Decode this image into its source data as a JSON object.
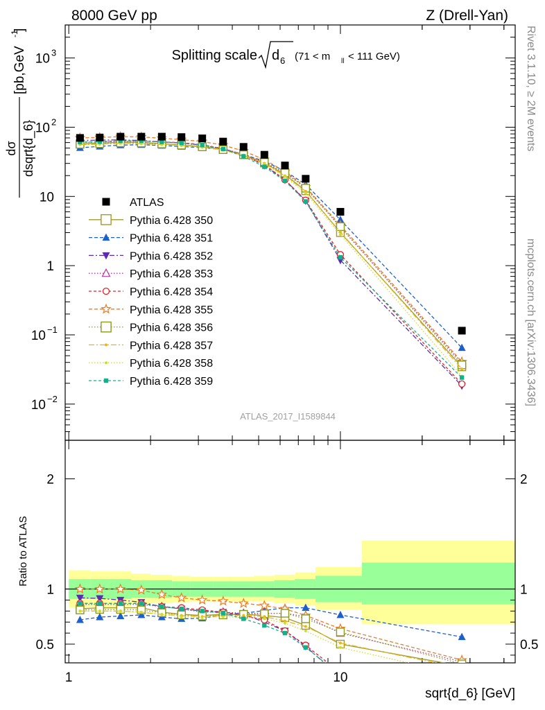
{
  "header": {
    "left": "8000 GeV pp",
    "right": "Z (Drell-Yan)"
  },
  "side_labels": {
    "version": "Rivet 3.1.10, ≥ 2M events",
    "source": "mcplots.cern.ch [arXiv:1306.3436]"
  },
  "chart_data": {
    "type": "line",
    "title": "Splitting scale √d_6 (71 < m_ll < 111 GeV)",
    "title_parts": {
      "main": "Splitting scale",
      "var": "d",
      "var_sub": "6",
      "cut": "(71 < m",
      "cut_sub": "ll",
      "cut_end": "< 111 GeV)"
    },
    "watermark": "ATLAS_2017_I1589844",
    "xlabel": "sqrt{d_6} [GeV]",
    "ylabel_top": "dσ / dsqrt{d_6} [pb,GeV⁻¹]",
    "ylabel_top_parts": {
      "num": "dσ",
      "den": "dsqrt{d_6}",
      "unit": "[pb,GeV",
      "exp": "-1",
      "close": "]"
    },
    "ylabel_bottom": "Ratio to ATLAS",
    "x_scale": "log",
    "xlim": [
      0.97,
      44
    ],
    "ylim_top": [
      0.003,
      3000
    ],
    "ylim_bottom": [
      0.33,
      2.35
    ],
    "y_scale_top": "log",
    "legend_position": "left-middle",
    "x_tick_labels": [
      {
        "value": 1,
        "label": "1"
      },
      {
        "value": 10,
        "label": "10"
      }
    ],
    "y_tick_labels_top": [
      {
        "value": 1000,
        "base": "10",
        "exp": "3"
      },
      {
        "value": 100,
        "base": "10",
        "exp": "2"
      },
      {
        "value": 10,
        "base": "10",
        "exp": ""
      },
      {
        "value": 1,
        "base": "1",
        "exp": ""
      },
      {
        "value": 0.1,
        "base": "10",
        "exp": "−1"
      },
      {
        "value": 0.01,
        "base": "10",
        "exp": "−2"
      }
    ],
    "y_tick_labels_bottom": [
      {
        "value": 2,
        "label": "2"
      },
      {
        "value": 1,
        "label": "1"
      },
      {
        "value": 0.5,
        "label": "0.5"
      }
    ],
    "bins": [
      [
        1.0,
        1.2
      ],
      [
        1.2,
        1.4
      ],
      [
        1.4,
        1.7
      ],
      [
        1.7,
        2.0
      ],
      [
        2.0,
        2.4
      ],
      [
        2.4,
        2.8
      ],
      [
        2.8,
        3.4
      ],
      [
        3.4,
        4.0
      ],
      [
        4.0,
        4.8
      ],
      [
        4.8,
        5.7
      ],
      [
        5.7,
        6.8
      ],
      [
        6.8,
        8.1
      ],
      [
        8.1,
        12.0
      ],
      [
        12.0,
        44.0
      ]
    ],
    "x": [
      1.1,
      1.3,
      1.55,
      1.85,
      2.2,
      2.6,
      3.1,
      3.7,
      4.4,
      5.25,
      6.25,
      7.45,
      10.0,
      28.0
    ],
    "atlas": {
      "name": "ATLAS",
      "color": "#000000",
      "values": [
        70,
        71,
        73,
        73,
        73,
        72,
        69,
        62,
        52,
        40,
        28,
        18,
        6.0,
        0.115
      ],
      "band_inner": [
        [
          0.91,
          1.09
        ],
        [
          0.91,
          1.09
        ],
        [
          0.91,
          1.09
        ],
        [
          0.92,
          1.08
        ],
        [
          0.92,
          1.08
        ],
        [
          0.93,
          1.07
        ],
        [
          0.93,
          1.07
        ],
        [
          0.93,
          1.07
        ],
        [
          0.93,
          1.07
        ],
        [
          0.93,
          1.07
        ],
        [
          0.92,
          1.08
        ],
        [
          0.91,
          1.09
        ],
        [
          0.88,
          1.12
        ],
        [
          0.86,
          1.24
        ]
      ],
      "band_outer": [
        [
          0.83,
          1.17
        ],
        [
          0.84,
          1.16
        ],
        [
          0.84,
          1.16
        ],
        [
          0.86,
          1.14
        ],
        [
          0.87,
          1.13
        ],
        [
          0.88,
          1.12
        ],
        [
          0.89,
          1.11
        ],
        [
          0.89,
          1.11
        ],
        [
          0.89,
          1.11
        ],
        [
          0.89,
          1.12
        ],
        [
          0.87,
          1.13
        ],
        [
          0.85,
          1.15
        ],
        [
          0.81,
          1.2
        ],
        [
          0.68,
          1.44
        ]
      ]
    },
    "series": [
      {
        "name": "Pythia 6.428 350",
        "color": "#a09a2a",
        "marker": "open-square",
        "dash": "",
        "big": true,
        "ratio": [
          0.82,
          0.83,
          0.83,
          0.83,
          0.79,
          0.77,
          0.76,
          0.77,
          0.77,
          0.76,
          0.74,
          0.67,
          0.5,
          0.3
        ]
      },
      {
        "name": "Pythia 6.428 351",
        "color": "#1f5fc9",
        "marker": "triangle-up",
        "dash": "5,3",
        "ratio": [
          0.72,
          0.745,
          0.755,
          0.765,
          0.745,
          0.73,
          0.735,
          0.765,
          0.78,
          0.805,
          0.83,
          0.83,
          0.765,
          0.565
        ]
      },
      {
        "name": "Pythia 6.428 352",
        "color": "#5b2cb0",
        "marker": "triangle-down",
        "dash": "7,3,2,3",
        "ratio": [
          0.92,
          0.915,
          0.9,
          0.88,
          0.84,
          0.82,
          0.8,
          0.79,
          0.77,
          0.7,
          0.62,
          0.48,
          0.2,
          0.16
        ]
      },
      {
        "name": "Pythia 6.428 353",
        "color": "#b23aa6",
        "marker": "open-triangle-up",
        "dash": "1.5,2.5",
        "ratio": [
          0.86,
          0.86,
          0.86,
          0.86,
          0.84,
          0.82,
          0.79,
          0.79,
          0.78,
          0.78,
          0.78,
          0.75,
          0.6,
          0.34
        ]
      },
      {
        "name": "Pythia 6.428 354",
        "color": "#e0202a",
        "marker": "open-circle",
        "dash": "4,3",
        "ratio": [
          0.87,
          0.87,
          0.87,
          0.87,
          0.84,
          0.83,
          0.81,
          0.79,
          0.76,
          0.72,
          0.62,
          0.49,
          0.24,
          0.17
        ]
      },
      {
        "name": "Pythia 6.428 355",
        "color": "#f07a1e",
        "marker": "open-star",
        "dash": "5,3",
        "ratio": [
          1.0,
          1.0,
          1.0,
          0.99,
          0.95,
          0.92,
          0.9,
          0.89,
          0.87,
          0.85,
          0.82,
          0.76,
          0.64,
          0.355
        ]
      },
      {
        "name": "Pythia 6.428 356",
        "color": "#8a9a1a",
        "marker": "open-square",
        "dash": "1.5,2.5",
        "ratio": [
          0.81,
          0.815,
          0.815,
          0.81,
          0.785,
          0.765,
          0.755,
          0.765,
          0.77,
          0.775,
          0.78,
          0.73,
          0.61,
          0.32
        ]
      },
      {
        "name": "Pythia 6.428 357",
        "color": "#e8b61c",
        "marker": "small-dot",
        "dash": "8,3,2,3",
        "ratio": [
          0.8,
          0.8,
          0.8,
          0.79,
          0.77,
          0.76,
          0.75,
          0.76,
          0.76,
          0.75,
          0.71,
          0.66,
          0.51,
          0.28
        ]
      },
      {
        "name": "Pythia 6.428 358",
        "color": "#cfdc2a",
        "marker": "small-dot",
        "dash": "1.5,2.5",
        "ratio": [
          0.8,
          0.8,
          0.8,
          0.79,
          0.77,
          0.75,
          0.74,
          0.75,
          0.74,
          0.73,
          0.69,
          0.62,
          0.47,
          0.22
        ]
      },
      {
        "name": "Pythia 6.428 359",
        "color": "#14b08c",
        "marker": "filled-square",
        "dash": "4,3",
        "ratio": [
          0.87,
          0.87,
          0.87,
          0.87,
          0.84,
          0.82,
          0.8,
          0.78,
          0.73,
          0.67,
          0.6,
          0.47,
          0.22,
          0.21
        ]
      }
    ]
  }
}
